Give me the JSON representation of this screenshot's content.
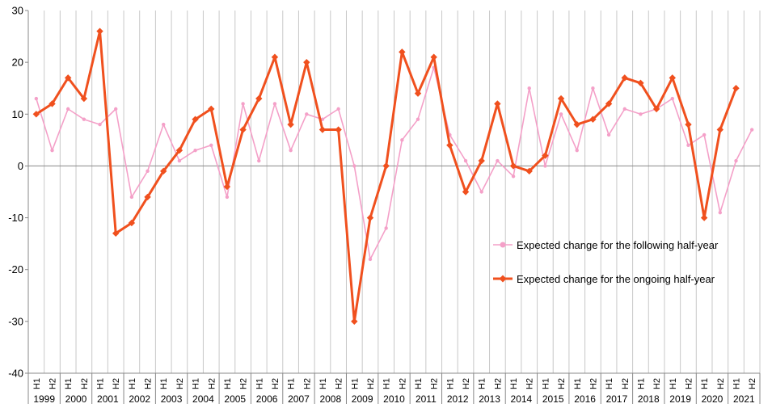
{
  "chart_data": {
    "type": "line",
    "title": "",
    "xlabel": "",
    "ylabel": "",
    "ylim": [
      -40,
      30
    ],
    "yticks": [
      30,
      20,
      10,
      0,
      -10,
      -20,
      -30,
      -40
    ],
    "grid": "vertical",
    "legend_position": "right",
    "half_labels": [
      "H1",
      "H2"
    ],
    "years": [
      "1999",
      "2000",
      "2001",
      "2002",
      "2003",
      "2004",
      "2005",
      "2006",
      "2007",
      "2008",
      "2009",
      "2010",
      "2011",
      "2012",
      "2013",
      "2014",
      "2015",
      "2016",
      "2017",
      "2018",
      "2019",
      "2020",
      "2021"
    ],
    "series": [
      {
        "name": "Expected change for the following half-year",
        "color": "#f4a0c8",
        "values": [
          13,
          3,
          11,
          9,
          8,
          11,
          -6,
          -1,
          8,
          1,
          3,
          4,
          -6,
          12,
          1,
          12,
          3,
          10,
          9,
          11,
          0,
          -18,
          -12,
          5,
          9,
          19,
          6,
          1,
          -5,
          1,
          -2,
          15,
          0,
          10,
          3,
          15,
          6,
          11,
          10,
          11,
          13,
          4,
          6,
          -9,
          1,
          7
        ]
      },
      {
        "name": "Expected change for the ongoing half-year",
        "color": "#f0501e",
        "values": [
          10,
          12,
          17,
          13,
          26,
          -13,
          -11,
          -6,
          -1,
          3,
          9,
          11,
          -4,
          7,
          13,
          21,
          8,
          20,
          7,
          7,
          -30,
          -10,
          0,
          22,
          14,
          21,
          4,
          -5,
          1,
          12,
          0,
          -1,
          2,
          13,
          8,
          9,
          12,
          17,
          16,
          11,
          17,
          8,
          -10,
          7,
          15,
          null
        ]
      }
    ]
  }
}
